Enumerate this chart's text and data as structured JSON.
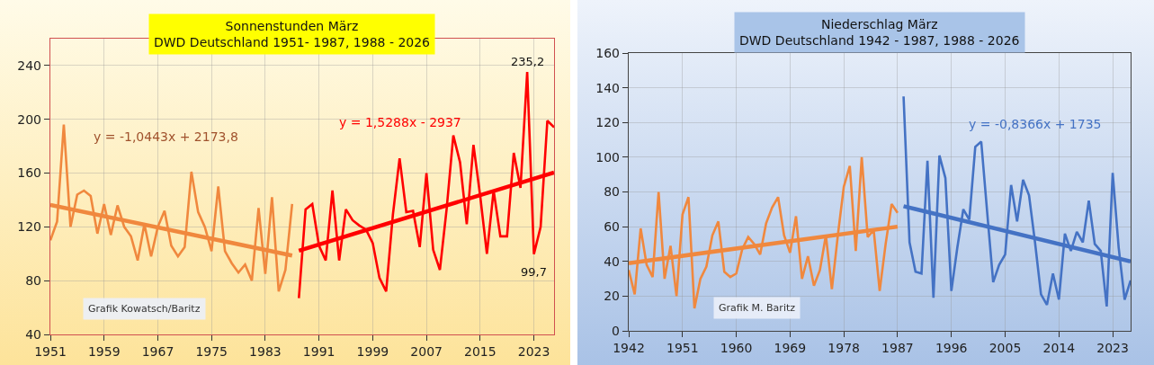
{
  "chart_data": [
    {
      "type": "line",
      "title": "Sonnenstunden März\nDWD Deutschland 1951- 1987, 1988 - 2026",
      "xlim": [
        1951,
        2026
      ],
      "xticks": [
        1951,
        1959,
        1967,
        1975,
        1983,
        1991,
        1999,
        2007,
        2015,
        2023
      ],
      "ylim": [
        40,
        260
      ],
      "yticks": [
        40,
        80,
        120,
        160,
        200,
        240
      ],
      "grid": true,
      "legend": false,
      "marker": "none",
      "series": [
        {
          "color": "#f0883e",
          "x": [
            1951,
            1952,
            1953,
            1954,
            1955,
            1956,
            1957,
            1958,
            1959,
            1960,
            1961,
            1962,
            1963,
            1964,
            1965,
            1966,
            1967,
            1968,
            1969,
            1970,
            1971,
            1972,
            1973,
            1974,
            1975,
            1976,
            1977,
            1978,
            1979,
            1980,
            1981,
            1982,
            1983,
            1984,
            1985,
            1986,
            1987
          ],
          "values": [
            110,
            124,
            196,
            120,
            144,
            147,
            143,
            115,
            137,
            114,
            136,
            120,
            113,
            95,
            122,
            98,
            120,
            132,
            106,
            98,
            105,
            161,
            131,
            120,
            102,
            150,
            102,
            93,
            86,
            92,
            80,
            134,
            85,
            142,
            72,
            88,
            137
          ]
        },
        {
          "color": "#ff0000",
          "x": [
            1988,
            1989,
            1990,
            1991,
            1992,
            1993,
            1994,
            1995,
            1996,
            1997,
            1998,
            1999,
            2000,
            2001,
            2002,
            2003,
            2004,
            2005,
            2006,
            2007,
            2008,
            2009,
            2010,
            2011,
            2012,
            2013,
            2014,
            2015,
            2016,
            2017,
            2018,
            2019,
            2020,
            2021,
            2022,
            2023,
            2024,
            2025,
            2026
          ],
          "values": [
            67,
            133,
            137,
            106,
            95,
            147,
            95,
            133,
            125,
            121,
            118,
            108,
            82,
            72,
            129,
            171,
            131,
            132,
            105,
            160,
            103,
            88,
            133,
            188,
            168,
            122,
            181,
            143,
            100,
            147,
            113,
            113,
            175,
            149,
            235.2,
            99.7,
            120,
            199,
            194
          ]
        },
        {
          "type": "line",
          "color": "#f0883e",
          "x": [
            1951,
            1987
          ],
          "values": [
            136.3,
            98.7
          ]
        },
        {
          "type": "line",
          "color": "#ff0000",
          "x": [
            1988,
            2026
          ],
          "values": [
            102.3,
            160.4
          ]
        }
      ],
      "annotations": [
        "y = -1,0443x + 2173,8",
        "y = 1,5288x - 2937",
        {
          "text": "235,2",
          "x": 2022,
          "y": 235.2
        },
        {
          "text": "99,7",
          "x": 2023,
          "y": 99.7
        },
        "Grafik Kowatsch/Baritz"
      ]
    },
    {
      "type": "line",
      "title": "Niederschlag März\nDWD Deutschland 1942 - 1987, 1988 - 2026",
      "xlim": [
        1942,
        2026
      ],
      "xticks": [
        1942,
        1951,
        1960,
        1969,
        1978,
        1987,
        1996,
        2005,
        2014,
        2023
      ],
      "ylim": [
        0,
        160
      ],
      "yticks": [
        0,
        20,
        40,
        60,
        80,
        100,
        120,
        140,
        160
      ],
      "grid": true,
      "legend": false,
      "marker": "none",
      "series": [
        {
          "color": "#f0883e",
          "x": [
            1942,
            1943,
            1944,
            1945,
            1946,
            1947,
            1948,
            1949,
            1950,
            1951,
            1952,
            1953,
            1954,
            1955,
            1956,
            1957,
            1958,
            1959,
            1960,
            1961,
            1962,
            1963,
            1964,
            1965,
            1966,
            1967,
            1968,
            1969,
            1970,
            1971,
            1972,
            1973,
            1974,
            1975,
            1976,
            1977,
            1978,
            1979,
            1980,
            1981,
            1982,
            1983,
            1984,
            1985,
            1986,
            1987
          ],
          "values": [
            35,
            21,
            59,
            38,
            31,
            80,
            30,
            49,
            20,
            67,
            77,
            13,
            30,
            37,
            55,
            63,
            34,
            31,
            33,
            47,
            54,
            50,
            44,
            62,
            71,
            77,
            55,
            45,
            66,
            30,
            43,
            26,
            35,
            55,
            24,
            55,
            83,
            95,
            46,
            100,
            54,
            58,
            23,
            50,
            73,
            68
          ]
        },
        {
          "color": "#4472c4",
          "x": [
            1988,
            1989,
            1990,
            1991,
            1992,
            1993,
            1994,
            1995,
            1996,
            1997,
            1998,
            1999,
            2000,
            2001,
            2002,
            2003,
            2004,
            2005,
            2006,
            2007,
            2008,
            2009,
            2010,
            2011,
            2012,
            2013,
            2014,
            2015,
            2016,
            2017,
            2018,
            2019,
            2020,
            2021,
            2022,
            2023,
            2024,
            2025,
            2026
          ],
          "values": [
            135,
            51,
            34,
            33,
            98,
            19,
            101,
            88,
            23,
            48,
            70,
            64,
            106,
            109,
            68,
            28,
            38,
            44,
            84,
            63,
            87,
            78,
            51,
            21,
            15,
            33,
            18,
            56,
            46,
            57,
            51,
            75,
            50,
            46,
            14,
            91,
            48,
            18,
            29
          ]
        },
        {
          "type": "line",
          "color": "#f0883e",
          "x": [
            1942,
            1987
          ],
          "values": [
            39,
            60
          ]
        },
        {
          "type": "line",
          "color": "#4472c4",
          "x": [
            1988,
            2026
          ],
          "values": [
            71.8,
            40
          ]
        }
      ],
      "annotations": [
        "y = -0,8366x + 1735",
        "Grafik M. Baritz"
      ]
    }
  ]
}
